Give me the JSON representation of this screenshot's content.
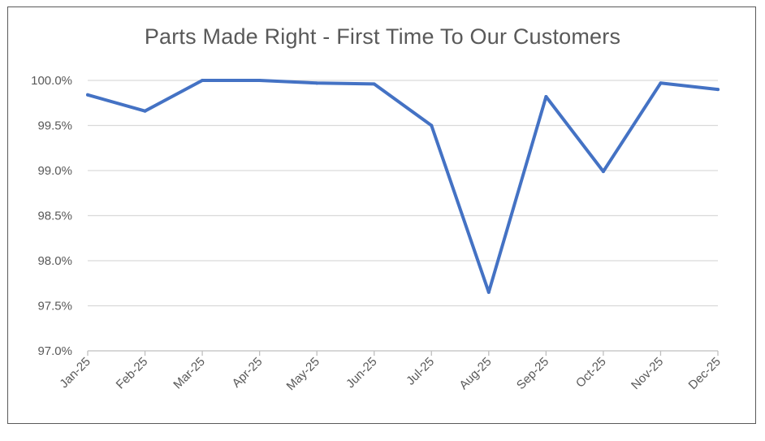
{
  "chart_data": {
    "type": "line",
    "title": "Parts Made Right - First Time To Our Customers",
    "xlabel": "",
    "ylabel": "",
    "categories": [
      "Jan-25",
      "Feb-25",
      "Mar-25",
      "Apr-25",
      "May-25",
      "Jun-25",
      "Jul-25",
      "Aug-25",
      "Sep-25",
      "Oct-25",
      "Nov-25",
      "Dec-25"
    ],
    "series": [
      {
        "values": [
          99.84,
          99.66,
          100.0,
          100.0,
          99.97,
          99.96,
          99.5,
          97.65,
          99.82,
          98.99,
          99.97,
          99.9
        ]
      }
    ],
    "ylim": [
      97.0,
      100.0
    ],
    "yticks": [
      "97.0%",
      "97.5%",
      "98.0%",
      "98.5%",
      "99.0%",
      "99.5%",
      "100.0%"
    ],
    "grid": true,
    "legend": "none",
    "colors": {
      "line": "#4472c4",
      "grid": "#d9d9d9",
      "axis": "#bfbfbf",
      "text": "#595959"
    }
  }
}
